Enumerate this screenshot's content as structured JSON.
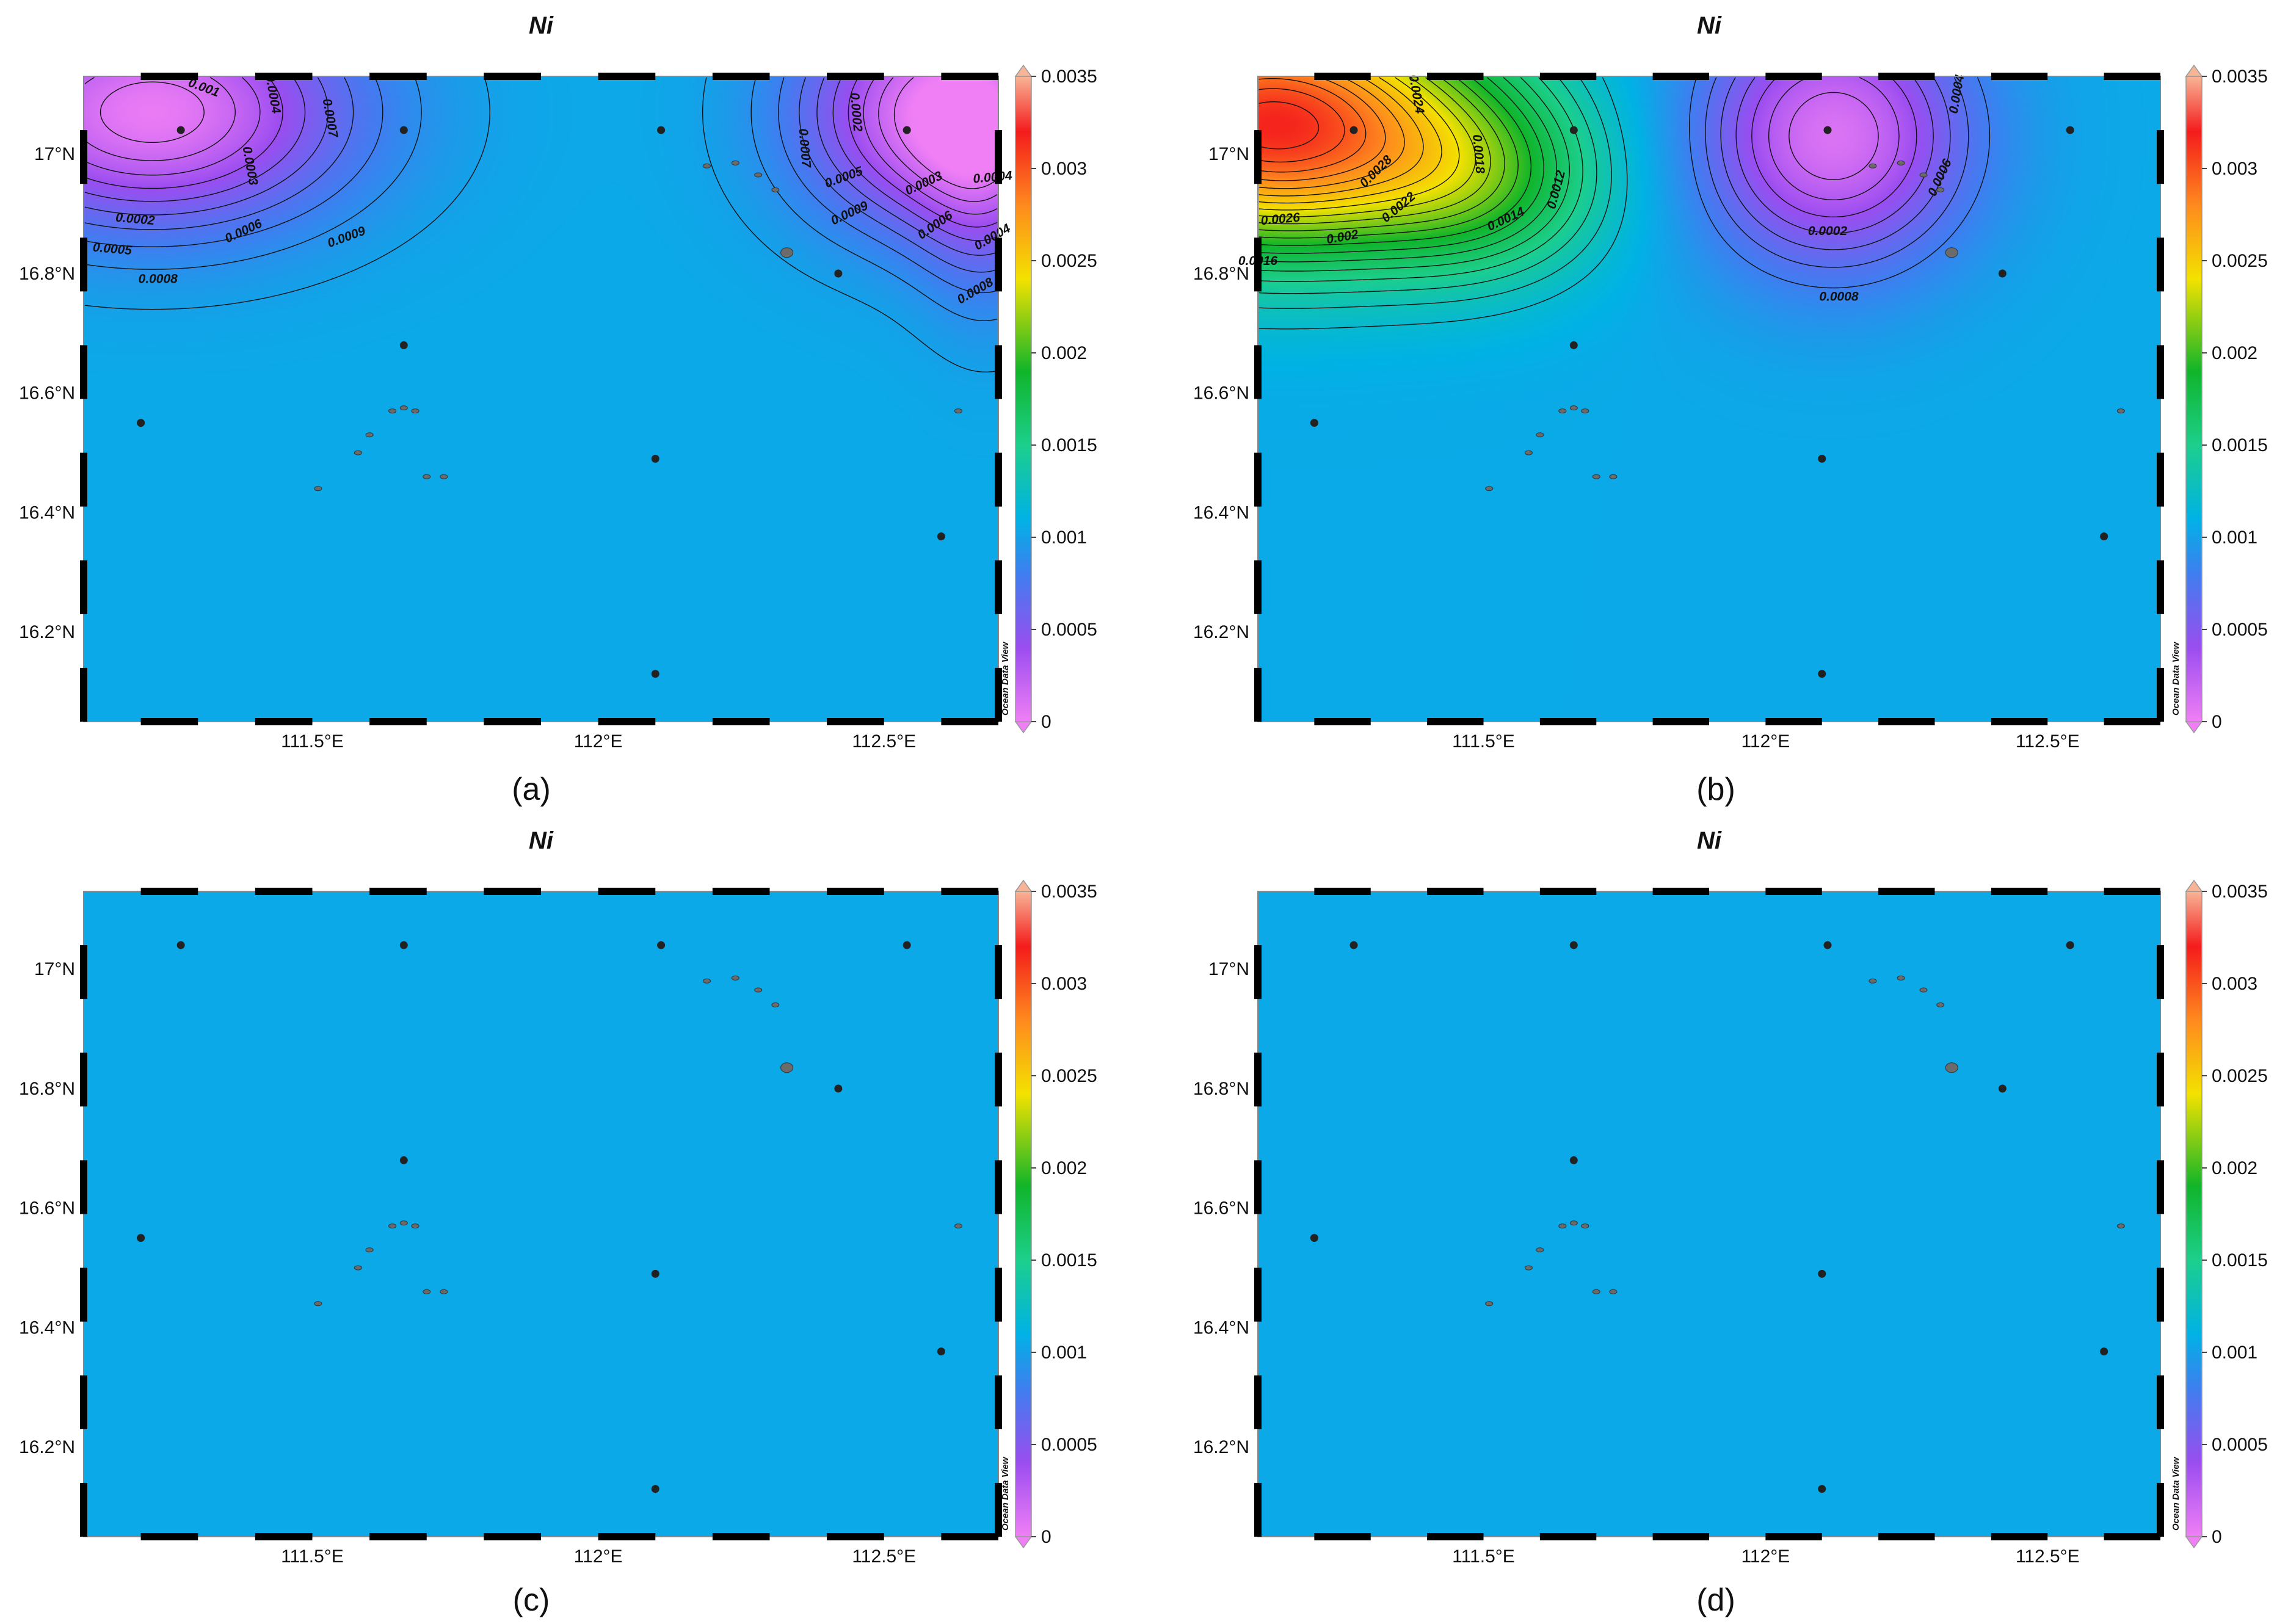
{
  "figure": {
    "panels": [
      {
        "id": "a",
        "title": "Ni",
        "label": "(a)",
        "variant": "two-lows"
      },
      {
        "id": "b",
        "title": "Ni",
        "label": "(b)",
        "variant": "high-low"
      },
      {
        "id": "c",
        "title": "Ni",
        "label": "(c)",
        "variant": "uniform"
      },
      {
        "id": "d",
        "title": "Ni",
        "label": "(d)",
        "variant": "uniform"
      }
    ],
    "x_ticks": [
      "111.5°E",
      "112°E",
      "112.5°E"
    ],
    "x_tick_values": [
      111.5,
      112.0,
      112.5
    ],
    "y_ticks": [
      "17°N",
      "16.8°N",
      "16.6°N",
      "16.4°N",
      "16.2°N"
    ],
    "y_tick_values": [
      17.0,
      16.8,
      16.6,
      16.4,
      16.2
    ],
    "lon_range": [
      111.1,
      112.7
    ],
    "lat_range": [
      16.05,
      17.13
    ],
    "colorbar": {
      "ticks": [
        "0.0035",
        "0.003",
        "0.0025",
        "0.002",
        "0.0015",
        "0.001",
        "0.0005",
        "0"
      ],
      "tick_values": [
        0.0035,
        0.003,
        0.0025,
        0.002,
        0.0015,
        0.001,
        0.0005,
        0
      ],
      "stops": [
        {
          "v": 0,
          "color": "#f07ff5"
        },
        {
          "v": 0.0004,
          "color": "#9b4df0"
        },
        {
          "v": 0.0008,
          "color": "#3f7ef0"
        },
        {
          "v": 0.0011,
          "color": "#00b2e5"
        },
        {
          "v": 0.0015,
          "color": "#1ccf8c"
        },
        {
          "v": 0.0019,
          "color": "#10b52a"
        },
        {
          "v": 0.0024,
          "color": "#f3e200"
        },
        {
          "v": 0.0028,
          "color": "#ff8a1e"
        },
        {
          "v": 0.0032,
          "color": "#f41c1c"
        },
        {
          "v": 0.0035,
          "color": "#f8b496"
        }
      ],
      "watermark": "Ocean Data View"
    },
    "stations": [
      {
        "lon": 111.27,
        "lat": 17.04
      },
      {
        "lon": 111.66,
        "lat": 17.04
      },
      {
        "lon": 112.11,
        "lat": 17.04
      },
      {
        "lon": 112.54,
        "lat": 17.04
      },
      {
        "lon": 112.42,
        "lat": 16.8
      },
      {
        "lon": 111.66,
        "lat": 16.68
      },
      {
        "lon": 111.2,
        "lat": 16.55
      },
      {
        "lon": 112.1,
        "lat": 16.49
      },
      {
        "lon": 112.6,
        "lat": 16.36
      },
      {
        "lon": 112.1,
        "lat": 16.13
      }
    ],
    "islands": [
      {
        "lon": 112.19,
        "lat": 16.98
      },
      {
        "lon": 112.24,
        "lat": 16.985
      },
      {
        "lon": 112.28,
        "lat": 16.965
      },
      {
        "lon": 112.31,
        "lat": 16.94
      },
      {
        "lon": 112.33,
        "lat": 16.835
      },
      {
        "lon": 111.66,
        "lat": 16.575
      },
      {
        "lon": 111.68,
        "lat": 16.57
      },
      {
        "lon": 111.64,
        "lat": 16.57
      },
      {
        "lon": 111.6,
        "lat": 16.53
      },
      {
        "lon": 111.58,
        "lat": 16.5
      },
      {
        "lon": 111.7,
        "lat": 16.46
      },
      {
        "lon": 111.73,
        "lat": 16.46
      },
      {
        "lon": 111.51,
        "lat": 16.44
      },
      {
        "lon": 112.63,
        "lat": 16.57
      }
    ],
    "contour_labels": {
      "a": [
        {
          "text": "0.001",
          "lon": 111.31,
          "lat": 17.11,
          "rot": 20
        },
        {
          "text": "0.0004",
          "lon": 111.43,
          "lat": 17.1,
          "rot": 80
        },
        {
          "text": "0.0007",
          "lon": 111.53,
          "lat": 17.06,
          "rot": 80
        },
        {
          "text": "0.0003",
          "lon": 111.39,
          "lat": 16.98,
          "rot": 80
        },
        {
          "text": "0.0002",
          "lon": 111.19,
          "lat": 16.89,
          "rot": 5
        },
        {
          "text": "0.0006",
          "lon": 111.38,
          "lat": 16.87,
          "rot": -25
        },
        {
          "text": "0.0005",
          "lon": 111.15,
          "lat": 16.84,
          "rot": 5
        },
        {
          "text": "0.0008",
          "lon": 111.23,
          "lat": 16.79,
          "rot": 0
        },
        {
          "text": "0.0009",
          "lon": 111.56,
          "lat": 16.86,
          "rot": -20
        },
        {
          "text": "0.0002",
          "lon": 112.45,
          "lat": 17.07,
          "rot": 85
        },
        {
          "text": "0.0007",
          "lon": 112.36,
          "lat": 17.01,
          "rot": 85
        },
        {
          "text": "0.0005",
          "lon": 112.43,
          "lat": 16.96,
          "rot": -20
        },
        {
          "text": "0.0003",
          "lon": 112.57,
          "lat": 16.95,
          "rot": -25
        },
        {
          "text": "0.0009",
          "lon": 112.44,
          "lat": 16.9,
          "rot": -25
        },
        {
          "text": "0.0006",
          "lon": 112.59,
          "lat": 16.88,
          "rot": -35
        },
        {
          "text": "0.0008",
          "lon": 112.66,
          "lat": 16.77,
          "rot": -30
        },
        {
          "text": "0.0004",
          "lon": 112.69,
          "lat": 16.96,
          "rot": -5
        },
        {
          "text": "0.0004",
          "lon": 112.69,
          "lat": 16.86,
          "rot": -30
        }
      ],
      "b": [
        {
          "text": "0.0024",
          "lon": 111.38,
          "lat": 17.1,
          "rot": 80
        },
        {
          "text": "0.0028",
          "lon": 111.31,
          "lat": 16.97,
          "rot": -45
        },
        {
          "text": "0.0018",
          "lon": 111.49,
          "lat": 17.0,
          "rot": 85
        },
        {
          "text": "0.0012",
          "lon": 111.63,
          "lat": 16.94,
          "rot": -75
        },
        {
          "text": "0.0026",
          "lon": 111.14,
          "lat": 16.89,
          "rot": -5
        },
        {
          "text": "0.0022",
          "lon": 111.35,
          "lat": 16.91,
          "rot": -40
        },
        {
          "text": "0.0014",
          "lon": 111.54,
          "lat": 16.89,
          "rot": -25
        },
        {
          "text": "0.002",
          "lon": 111.25,
          "lat": 16.86,
          "rot": -10
        },
        {
          "text": "0.0016",
          "lon": 111.1,
          "lat": 16.82,
          "rot": 0
        },
        {
          "text": "0.0002",
          "lon": 112.11,
          "lat": 16.87,
          "rot": 0
        },
        {
          "text": "0.0006",
          "lon": 112.31,
          "lat": 16.96,
          "rot": -65
        },
        {
          "text": "0.0008",
          "lon": 112.13,
          "lat": 16.76,
          "rot": 0
        },
        {
          "text": "0.0004",
          "lon": 112.34,
          "lat": 17.1,
          "rot": -80
        }
      ]
    }
  }
}
